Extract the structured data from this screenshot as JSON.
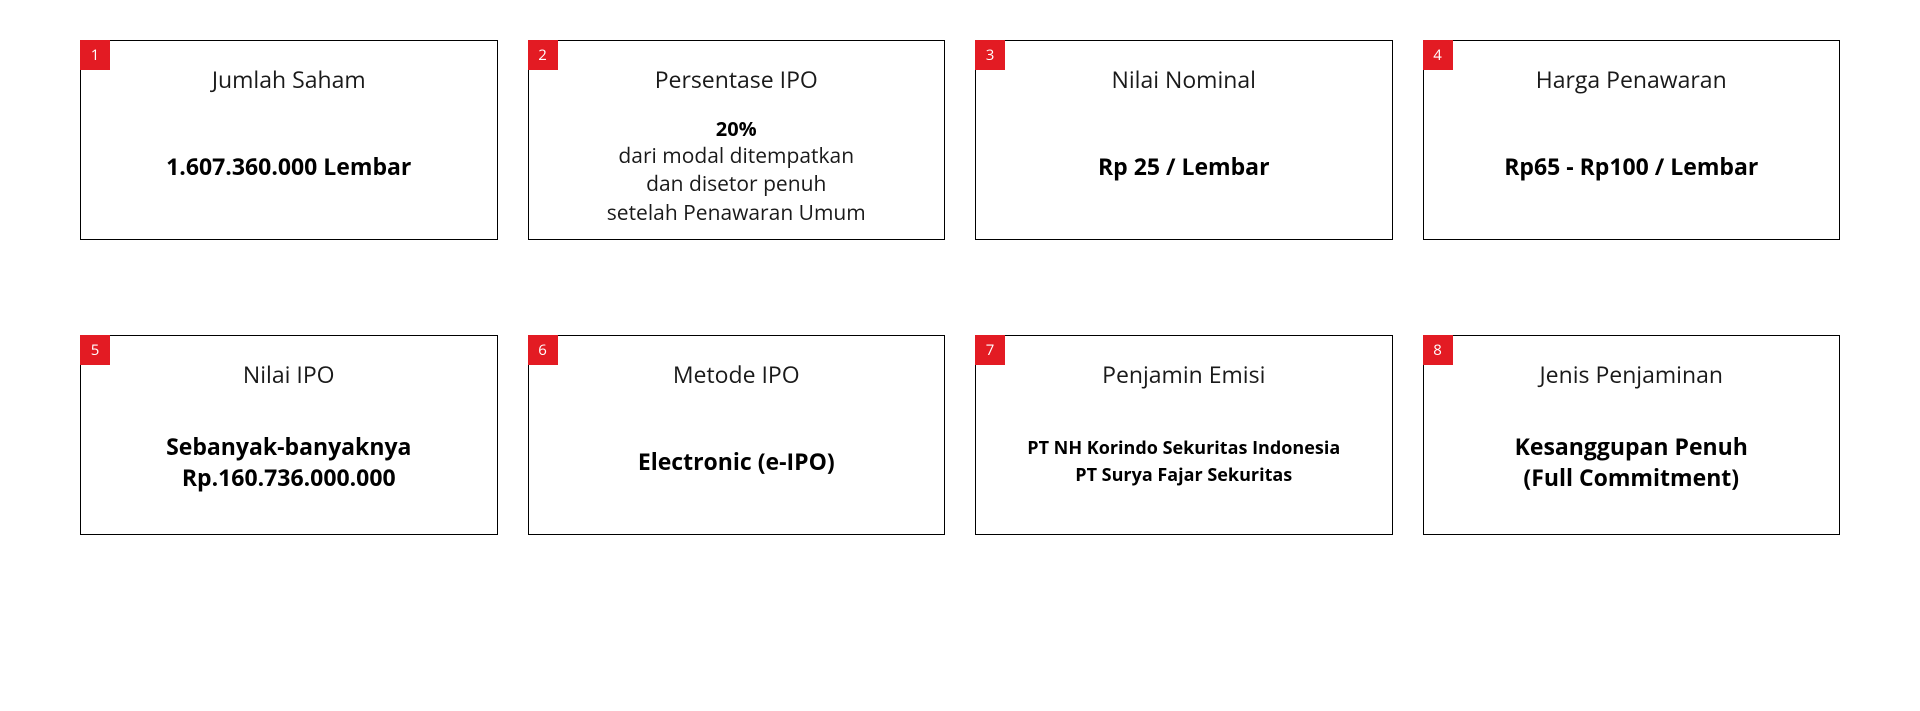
{
  "layout": {
    "columns": 4,
    "rows": 2,
    "card_border_color": "#000000",
    "badge_bg_color": "#e31b23",
    "badge_text_color": "#ffffff",
    "background_color": "#ffffff",
    "title_fontsize": 23,
    "value_fontsize_bold": 23,
    "value_fontsize_regular": 21,
    "value_fontsize_bold_sm": 18
  },
  "cards": [
    {
      "num": "1",
      "title": "Jumlah Saham",
      "value_bold": "1.607.360.000 Lembar"
    },
    {
      "num": "2",
      "title": "Persentase IPO",
      "pct": "20%",
      "line1": "dari modal ditempatkan",
      "line2": "dan disetor penuh",
      "line3": "setelah Penawaran Umum"
    },
    {
      "num": "3",
      "title": "Nilai Nominal",
      "value_bold": "Rp 25 / Lembar"
    },
    {
      "num": "4",
      "title": "Harga Penawaran",
      "value_bold": "Rp65 - Rp100 / Lembar"
    },
    {
      "num": "5",
      "title": "Nilai IPO",
      "value_bold_l1": "Sebanyak-banyaknya",
      "value_bold_l2": "Rp.160.736.000.000"
    },
    {
      "num": "6",
      "title": "Metode IPO",
      "value_bold": "Electronic (e-IPO)"
    },
    {
      "num": "7",
      "title": "Penjamin Emisi",
      "value_sm_l1": "PT NH Korindo Sekuritas Indonesia",
      "value_sm_l2": "PT Surya Fajar Sekuritas"
    },
    {
      "num": "8",
      "title": "Jenis Penjaminan",
      "value_bold_l1": "Kesanggupan Penuh",
      "value_bold_l2": "(Full Commitment)"
    }
  ]
}
